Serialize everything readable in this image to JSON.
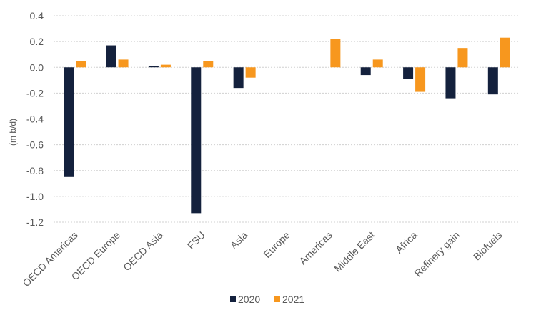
{
  "chart_data": {
    "type": "bar",
    "title": "",
    "xlabel": "",
    "ylabel": "(m b/d)",
    "ylim": [
      -1.2,
      0.4
    ],
    "yticks": [
      0.4,
      0.2,
      0.0,
      -0.2,
      -0.4,
      -0.6,
      -0.8,
      -1.0,
      -1.2
    ],
    "ytick_labels": [
      "0.4",
      "0.2",
      "0.0",
      "-0.2",
      "-0.4",
      "-0.6",
      "-0.8",
      "-1.0",
      "-1.2"
    ],
    "grid": true,
    "legend_position": "bottom",
    "categories": [
      "OECD Americas",
      "OECD Europe",
      "OECD Asia",
      "FSU",
      "Asia",
      "Europe",
      "Americas",
      "Middle East",
      "Africa",
      "Refinery gain",
      "Biofuels"
    ],
    "series": [
      {
        "name": "2020",
        "color": "#14213d",
        "values": [
          -0.85,
          0.17,
          0.01,
          -1.13,
          -0.16,
          0.0,
          0.0,
          -0.06,
          -0.09,
          -0.24,
          -0.21
        ]
      },
      {
        "name": "2021",
        "color": "#f7971e",
        "values": [
          0.05,
          0.06,
          0.02,
          0.05,
          -0.08,
          0.0,
          0.22,
          0.06,
          -0.19,
          0.15,
          0.23
        ]
      }
    ]
  }
}
